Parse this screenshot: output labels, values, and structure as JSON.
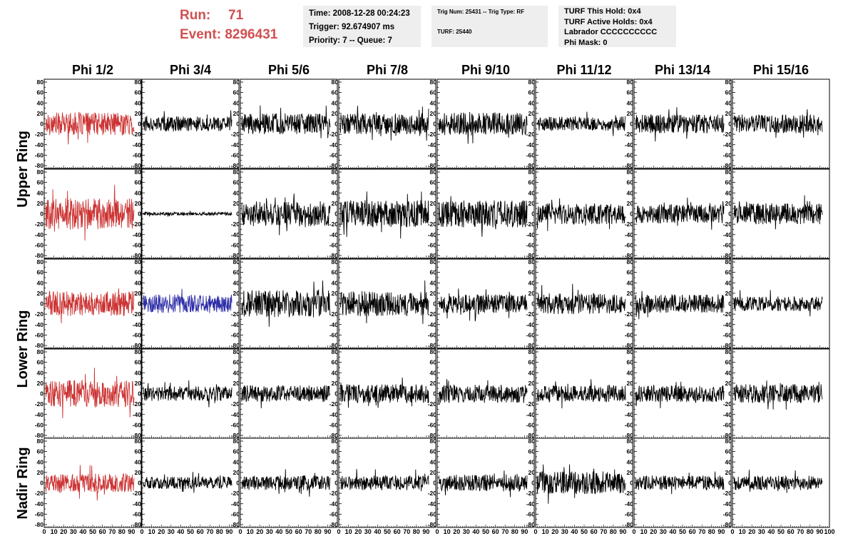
{
  "header": {
    "run_label": "Run:",
    "run_value": "71",
    "event_label": "Event:",
    "event_value": "8296431",
    "time_line": "Time: 2008-12-28 00:24:23",
    "trigger_line": "Trigger: 92.674907 ms",
    "priority_line": "Priority: 7 -- Queue: 7",
    "trig_line": "Trig Num: 25431 -- Trig Type: RF",
    "turf_line": "TURF: 25440",
    "turf_hold_line": "TURF This Hold: 0x4",
    "turf_active_line": "TURF Active Holds: 0x4",
    "labrador_line": "Labrador CCCCCCCCCC",
    "phimask_line": "Phi Mask: 0"
  },
  "colors": {
    "red_trace": "#cc3333",
    "blue_trace": "#2e2ea8",
    "black_trace": "#000000",
    "info_box_bg": "#eeeeee",
    "header_text": "#d05050"
  },
  "chart_data": {
    "type": "line",
    "columns": [
      "Phi 1/2",
      "Phi 3/4",
      "Phi 5/6",
      "Phi 7/8",
      "Phi 9/10",
      "Phi 11/12",
      "Phi 13/14",
      "Phi 15/16"
    ],
    "rows": [
      "Upper Ring",
      "Lower Ring",
      "Nadir Ring"
    ],
    "xlim": [
      0,
      100
    ],
    "ylim": [
      -80,
      80
    ],
    "x_ticks": [
      "0",
      "10",
      "20",
      "30",
      "40",
      "50",
      "60",
      "70",
      "80",
      "90",
      "100"
    ],
    "y_ticks": [
      "80",
      "60",
      "40",
      "20",
      "0",
      "-20",
      "-40",
      "-60",
      "-80"
    ],
    "panels": [
      {
        "row": 0,
        "col": 0,
        "color": "red",
        "amplitude": 22
      },
      {
        "row": 0,
        "col": 1,
        "color": "black",
        "amplitude": 14
      },
      {
        "row": 0,
        "col": 2,
        "color": "black",
        "amplitude": 20
      },
      {
        "row": 0,
        "col": 3,
        "color": "black",
        "amplitude": 20
      },
      {
        "row": 0,
        "col": 4,
        "color": "black",
        "amplitude": 22
      },
      {
        "row": 0,
        "col": 5,
        "color": "black",
        "amplitude": 14
      },
      {
        "row": 0,
        "col": 6,
        "color": "black",
        "amplitude": 18
      },
      {
        "row": 0,
        "col": 7,
        "color": "black",
        "amplitude": 18
      },
      {
        "row": 1,
        "col": 0,
        "color": "red",
        "amplitude": 30
      },
      {
        "row": 1,
        "col": 1,
        "color": "black",
        "amplitude": 3
      },
      {
        "row": 1,
        "col": 2,
        "color": "black",
        "amplitude": 24
      },
      {
        "row": 1,
        "col": 3,
        "color": "black",
        "amplitude": 26
      },
      {
        "row": 1,
        "col": 4,
        "color": "black",
        "amplitude": 26
      },
      {
        "row": 1,
        "col": 5,
        "color": "black",
        "amplitude": 20
      },
      {
        "row": 1,
        "col": 6,
        "color": "black",
        "amplitude": 18
      },
      {
        "row": 1,
        "col": 7,
        "color": "black",
        "amplitude": 20
      },
      {
        "row": 2,
        "col": 0,
        "color": "red",
        "amplitude": 24
      },
      {
        "row": 2,
        "col": 1,
        "color": "blue",
        "amplitude": 18
      },
      {
        "row": 2,
        "col": 2,
        "color": "black",
        "amplitude": 26
      },
      {
        "row": 2,
        "col": 3,
        "color": "black",
        "amplitude": 24
      },
      {
        "row": 2,
        "col": 4,
        "color": "black",
        "amplitude": 18
      },
      {
        "row": 2,
        "col": 5,
        "color": "black",
        "amplitude": 20
      },
      {
        "row": 2,
        "col": 6,
        "color": "black",
        "amplitude": 18
      },
      {
        "row": 2,
        "col": 7,
        "color": "black",
        "amplitude": 14
      },
      {
        "row": 3,
        "col": 0,
        "color": "red",
        "amplitude": 26
      },
      {
        "row": 3,
        "col": 1,
        "color": "black",
        "amplitude": 14
      },
      {
        "row": 3,
        "col": 2,
        "color": "black",
        "amplitude": 16
      },
      {
        "row": 3,
        "col": 3,
        "color": "black",
        "amplitude": 18
      },
      {
        "row": 3,
        "col": 4,
        "color": "black",
        "amplitude": 18
      },
      {
        "row": 3,
        "col": 5,
        "color": "black",
        "amplitude": 16
      },
      {
        "row": 3,
        "col": 6,
        "color": "black",
        "amplitude": 16
      },
      {
        "row": 3,
        "col": 7,
        "color": "black",
        "amplitude": 18
      },
      {
        "row": 4,
        "col": 0,
        "color": "red",
        "amplitude": 18
      },
      {
        "row": 4,
        "col": 1,
        "color": "black",
        "amplitude": 12
      },
      {
        "row": 4,
        "col": 2,
        "color": "black",
        "amplitude": 14
      },
      {
        "row": 4,
        "col": 3,
        "color": "black",
        "amplitude": 14
      },
      {
        "row": 4,
        "col": 4,
        "color": "black",
        "amplitude": 16
      },
      {
        "row": 4,
        "col": 5,
        "color": "black",
        "amplitude": 22
      },
      {
        "row": 4,
        "col": 6,
        "color": "black",
        "amplitude": 14
      },
      {
        "row": 4,
        "col": 7,
        "color": "black",
        "amplitude": 14
      }
    ]
  }
}
